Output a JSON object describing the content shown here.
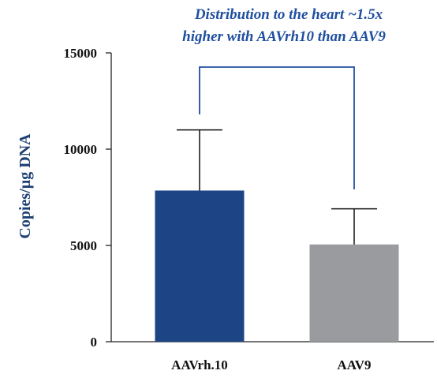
{
  "chart_data": {
    "type": "bar",
    "title": "",
    "annotation": {
      "line1": "Distribution to the heart ~1.5x",
      "line2": "higher with AAVrh10 than AAV9"
    },
    "xlabel": "",
    "ylabel": "Copies/µg DNA",
    "ylim": [
      0,
      15000
    ],
    "yticks": [
      "0",
      "5000",
      "10000",
      "15000"
    ],
    "ytick_values": [
      0,
      5000,
      10000,
      15000
    ],
    "categories": [
      "AAVrh.10",
      "AAV9"
    ],
    "values": [
      7850,
      5050
    ],
    "error_upper": [
      11000,
      6900
    ],
    "colors": [
      "#1d4585",
      "#9a9b9f"
    ],
    "annotation_color": "#1f4fa0",
    "grid": false
  }
}
